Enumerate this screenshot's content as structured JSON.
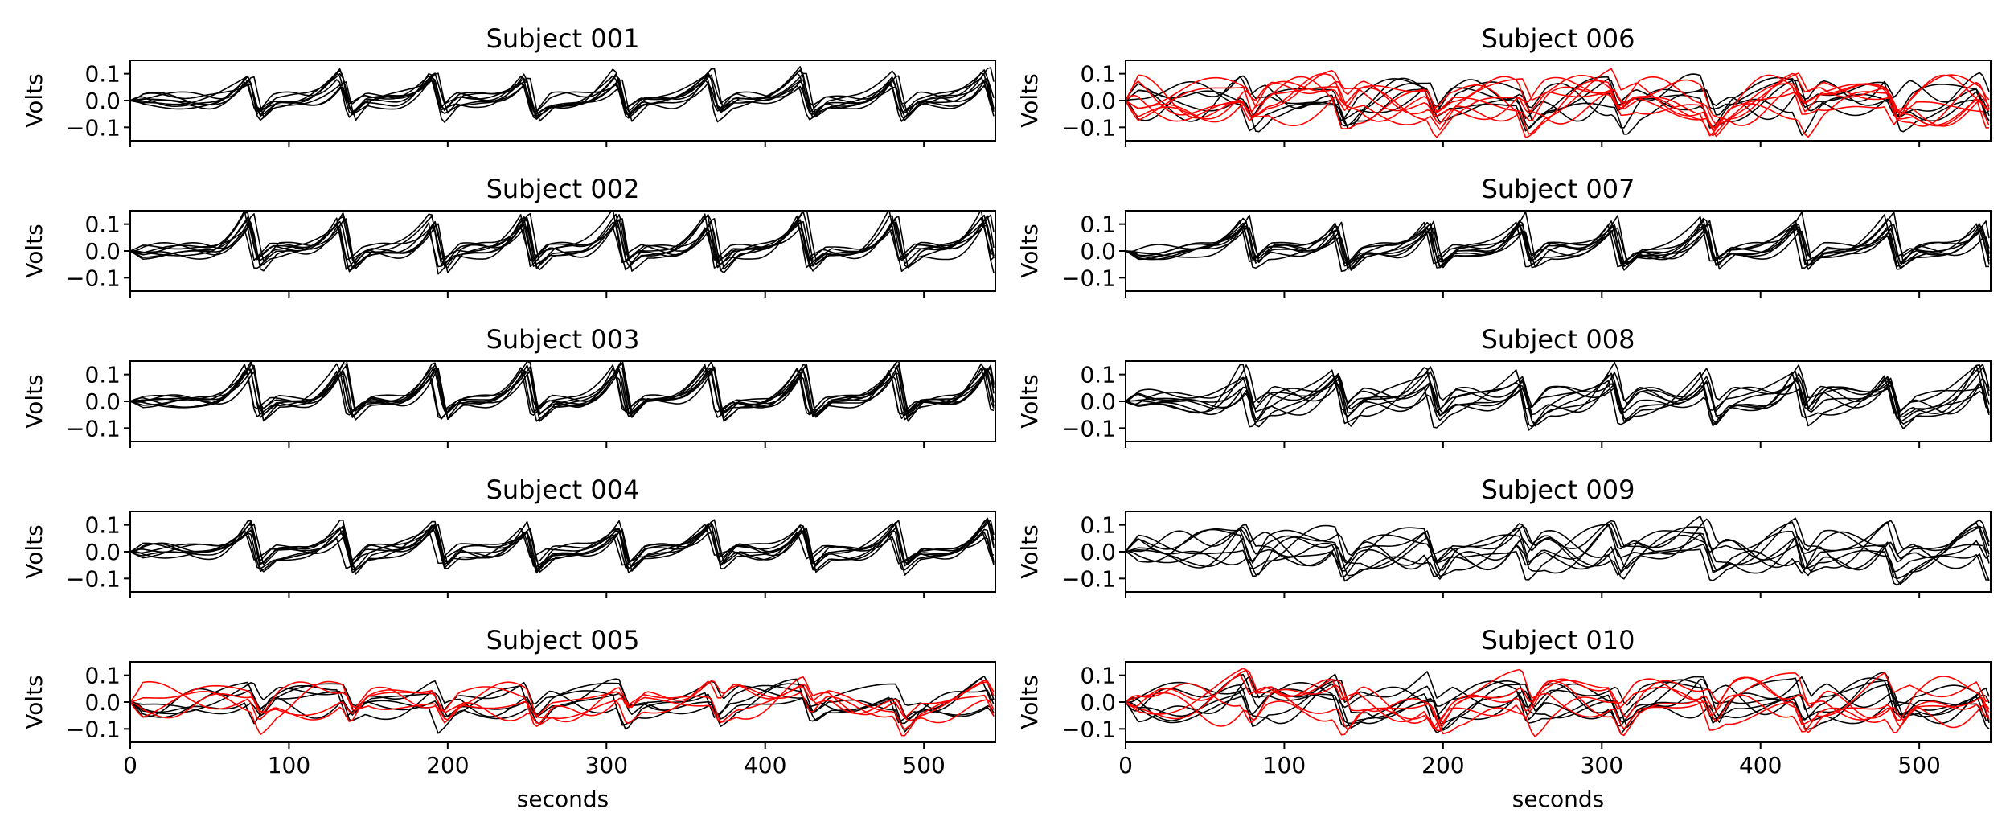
{
  "chart_data": {
    "type": "line",
    "figure_layout": "5 rows x 2 columns of subplots",
    "shared": {
      "xlabel": "seconds",
      "ylabel": "Volts",
      "xlim": [
        0,
        545
      ],
      "ylim": [
        -0.15,
        0.15
      ],
      "xticks": [
        0,
        100,
        200,
        300,
        400,
        500
      ],
      "xtick_labels": [
        "0",
        "100",
        "200",
        "300",
        "400",
        "500"
      ],
      "yticks": [
        0.1,
        0.0,
        -0.1
      ],
      "ytick_labels": [
        "0.1",
        "0.0",
        "−0.1"
      ],
      "colors": {
        "normal": "#000000",
        "flagged": "#ff0000"
      }
    },
    "panels": [
      {
        "title": "Subject 001",
        "row": 0,
        "col": 0,
        "peak_period": 58,
        "first_peak": 75,
        "amplitude": 0.09,
        "n_black": 8,
        "n_red": 0,
        "noise": 0.02
      },
      {
        "title": "Subject 002",
        "row": 1,
        "col": 0,
        "peak_period": 58,
        "first_peak": 75,
        "amplitude": 0.12,
        "n_black": 8,
        "n_red": 0,
        "noise": 0.02
      },
      {
        "title": "Subject 003",
        "row": 2,
        "col": 0,
        "peak_period": 58,
        "first_peak": 75,
        "amplitude": 0.12,
        "n_black": 8,
        "n_red": 0,
        "noise": 0.015
      },
      {
        "title": "Subject 004",
        "row": 3,
        "col": 0,
        "peak_period": 58,
        "first_peak": 75,
        "amplitude": 0.09,
        "n_black": 8,
        "n_red": 0,
        "noise": 0.02
      },
      {
        "title": "Subject 005",
        "row": 4,
        "col": 0,
        "peak_period": 58,
        "first_peak": 75,
        "amplitude": 0.03,
        "n_black": 5,
        "n_red": 4,
        "noise": 0.04
      },
      {
        "title": "Subject 006",
        "row": 0,
        "col": 1,
        "peak_period": 58,
        "first_peak": 75,
        "amplitude": 0.03,
        "n_black": 5,
        "n_red": 7,
        "noise": 0.05
      },
      {
        "title": "Subject 007",
        "row": 1,
        "col": 1,
        "peak_period": 58,
        "first_peak": 75,
        "amplitude": 0.1,
        "n_black": 8,
        "n_red": 0,
        "noise": 0.02
      },
      {
        "title": "Subject 008",
        "row": 2,
        "col": 1,
        "peak_period": 58,
        "first_peak": 75,
        "amplitude": 0.09,
        "n_black": 8,
        "n_red": 0,
        "noise": 0.035
      },
      {
        "title": "Subject 009",
        "row": 3,
        "col": 1,
        "peak_period": 58,
        "first_peak": 75,
        "amplitude": 0.05,
        "n_black": 8,
        "n_red": 0,
        "noise": 0.05
      },
      {
        "title": "Subject 010",
        "row": 4,
        "col": 1,
        "peak_period": 58,
        "first_peak": 75,
        "amplitude": 0.04,
        "n_black": 6,
        "n_red": 5,
        "noise": 0.05
      }
    ]
  }
}
